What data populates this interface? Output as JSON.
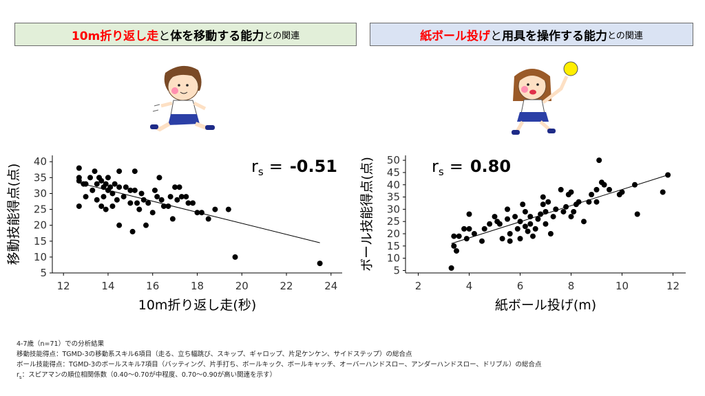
{
  "banners": {
    "left": {
      "red": "10m折り返し走",
      "mid1": "と",
      "bold": "体を移動する能力",
      "small": "との関連"
    },
    "right": {
      "red": "紙ボール投げ",
      "mid1": "と",
      "bold": "用具を操作する能力",
      "small": "との関連"
    }
  },
  "chart_data": [
    {
      "type": "scatter",
      "xlabel": "10m折り返し走(秒)",
      "ylabel": "移動技能得点(点)",
      "xlim": [
        11.5,
        24.5
      ],
      "ylim": [
        5,
        42
      ],
      "xticks": [
        12,
        14,
        16,
        18,
        20,
        22,
        24
      ],
      "yticks": [
        5,
        10,
        15,
        20,
        25,
        30,
        35,
        40
      ],
      "rs_label": "r",
      "rs_sub": "s",
      "rs_eq": "=",
      "rs_value": "-0.51",
      "trendline": {
        "x": [
          12.6,
          23.5
        ],
        "y": [
          33.5,
          14.5
        ]
      },
      "points": [
        [
          12.7,
          38
        ],
        [
          12.7,
          35
        ],
        [
          12.7,
          34
        ],
        [
          12.7,
          26
        ],
        [
          12.9,
          33
        ],
        [
          13.0,
          29
        ],
        [
          13.0,
          33
        ],
        [
          13.2,
          35
        ],
        [
          13.3,
          31
        ],
        [
          13.4,
          37
        ],
        [
          13.5,
          33
        ],
        [
          13.5,
          28
        ],
        [
          13.6,
          35
        ],
        [
          13.7,
          34
        ],
        [
          13.7,
          26
        ],
        [
          13.8,
          32
        ],
        [
          13.8,
          29
        ],
        [
          13.9,
          33
        ],
        [
          13.9,
          25
        ],
        [
          14.0,
          35
        ],
        [
          14.0,
          31
        ],
        [
          14.1,
          32
        ],
        [
          14.2,
          30
        ],
        [
          14.2,
          26
        ],
        [
          14.3,
          33
        ],
        [
          14.4,
          28
        ],
        [
          14.5,
          37
        ],
        [
          14.5,
          32
        ],
        [
          14.5,
          20
        ],
        [
          14.7,
          29
        ],
        [
          14.8,
          32
        ],
        [
          15.0,
          31
        ],
        [
          15.0,
          27
        ],
        [
          15.1,
          18
        ],
        [
          15.2,
          37
        ],
        [
          15.2,
          31
        ],
        [
          15.3,
          27
        ],
        [
          15.4,
          25
        ],
        [
          15.5,
          30
        ],
        [
          15.6,
          28
        ],
        [
          15.7,
          20
        ],
        [
          15.8,
          27
        ],
        [
          16.0,
          24
        ],
        [
          16.1,
          31
        ],
        [
          16.2,
          29
        ],
        [
          16.3,
          35
        ],
        [
          16.4,
          28
        ],
        [
          16.5,
          26
        ],
        [
          16.7,
          26
        ],
        [
          16.8,
          29
        ],
        [
          16.9,
          22
        ],
        [
          17.0,
          32
        ],
        [
          17.1,
          28
        ],
        [
          17.2,
          32
        ],
        [
          17.3,
          29
        ],
        [
          17.5,
          29
        ],
        [
          17.6,
          27
        ],
        [
          17.8,
          27
        ],
        [
          18.0,
          24
        ],
        [
          18.2,
          24
        ],
        [
          18.5,
          22
        ],
        [
          18.8,
          25
        ],
        [
          19.4,
          25
        ],
        [
          19.7,
          10
        ],
        [
          23.5,
          8
        ]
      ]
    },
    {
      "type": "scatter",
      "xlabel": "紙ボール投げ(m)",
      "ylabel": "ボール技能得点(点)",
      "xlim": [
        1.5,
        12.5
      ],
      "ylim": [
        4,
        52
      ],
      "xticks": [
        2,
        4,
        6,
        8,
        10,
        12
      ],
      "yticks": [
        5,
        10,
        15,
        20,
        25,
        30,
        35,
        40,
        45,
        50
      ],
      "rs_label": "r",
      "rs_sub": "s",
      "rs_eq": "=",
      "rs_value": "0.80",
      "trendline": {
        "x": [
          3.3,
          11.8
        ],
        "y": [
          16,
          44
        ]
      },
      "points": [
        [
          3.3,
          6
        ],
        [
          3.4,
          19
        ],
        [
          3.4,
          15
        ],
        [
          3.5,
          13
        ],
        [
          3.6,
          19
        ],
        [
          3.8,
          22
        ],
        [
          3.9,
          18
        ],
        [
          4.0,
          28
        ],
        [
          4.0,
          22
        ],
        [
          4.2,
          20
        ],
        [
          4.5,
          17
        ],
        [
          4.6,
          22
        ],
        [
          4.8,
          24
        ],
        [
          5.0,
          27
        ],
        [
          5.1,
          25
        ],
        [
          5.2,
          24
        ],
        [
          5.3,
          18
        ],
        [
          5.5,
          30
        ],
        [
          5.5,
          26
        ],
        [
          5.6,
          20
        ],
        [
          5.6,
          17
        ],
        [
          5.8,
          27
        ],
        [
          5.9,
          22
        ],
        [
          6.0,
          25
        ],
        [
          6.0,
          18
        ],
        [
          6.1,
          32
        ],
        [
          6.2,
          29
        ],
        [
          6.2,
          23
        ],
        [
          6.3,
          21
        ],
        [
          6.4,
          27
        ],
        [
          6.4,
          24
        ],
        [
          6.5,
          19
        ],
        [
          6.6,
          22
        ],
        [
          6.7,
          26
        ],
        [
          6.8,
          28
        ],
        [
          6.9,
          35
        ],
        [
          6.9,
          32
        ],
        [
          7.0,
          29
        ],
        [
          7.0,
          24
        ],
        [
          7.1,
          33
        ],
        [
          7.2,
          20
        ],
        [
          7.3,
          27
        ],
        [
          7.4,
          30
        ],
        [
          7.6,
          38
        ],
        [
          7.7,
          29
        ],
        [
          7.8,
          31
        ],
        [
          7.9,
          36
        ],
        [
          8.0,
          37
        ],
        [
          8.0,
          27
        ],
        [
          8.1,
          29
        ],
        [
          8.2,
          32
        ],
        [
          8.3,
          33
        ],
        [
          8.5,
          25
        ],
        [
          8.7,
          33
        ],
        [
          8.8,
          36
        ],
        [
          9.0,
          33
        ],
        [
          9.0,
          38
        ],
        [
          9.1,
          50
        ],
        [
          9.2,
          41
        ],
        [
          9.3,
          40
        ],
        [
          9.5,
          38
        ],
        [
          9.9,
          36
        ],
        [
          10.0,
          37
        ],
        [
          10.5,
          40
        ],
        [
          10.6,
          28
        ],
        [
          11.6,
          37
        ],
        [
          11.8,
          44
        ]
      ]
    }
  ],
  "notes": {
    "line1": "4-7歳（n=71）での分析結果",
    "line2": "移動技能得点：TGMD-3の移動系スキル6項目（走る、立ち幅跳び、スキップ、ギャロップ、片足ケンケン、サイドステップ）の総合点",
    "line3": "ボール技能得点：TGMD-3のボールスキル7項目（バッティング、片手打ち、ボールキック、ボールキャッチ、オーバーハンドスロー、アンダーハンドスロー、ドリブル）の総合点",
    "line4_r": "r",
    "line4_sub": "s",
    "line4_rest": "：スピアマンの順位相関係数（0.40～0.70が中程度、0.70～0.90が高い関連を示す）"
  },
  "colors": {
    "banner_left_bg": "#e2efd9",
    "banner_right_bg": "#dae3f3",
    "accent_red": "#ff0000",
    "ball_yellow": "#ffee00"
  }
}
